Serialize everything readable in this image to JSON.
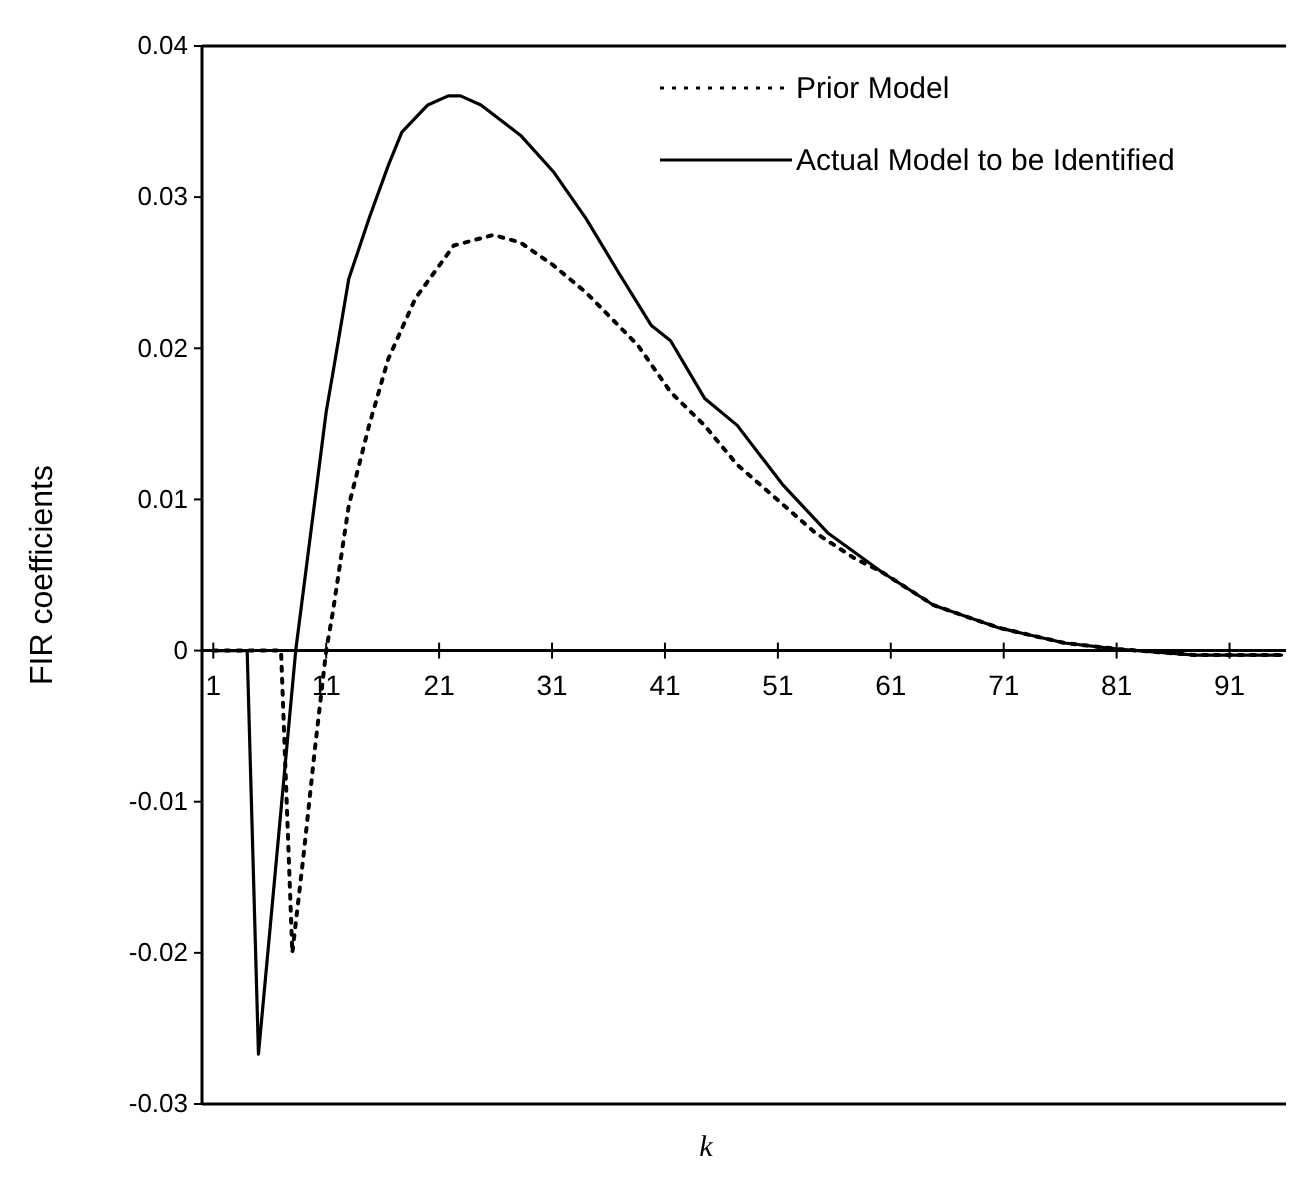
{
  "chart_data": {
    "type": "line",
    "xlabel": "k",
    "ylabel": "FIR coefficients",
    "xlim": [
      0,
      96
    ],
    "ylim": [
      -0.03,
      0.04
    ],
    "xticks": [
      1,
      11,
      21,
      31,
      41,
      51,
      61,
      71,
      81,
      91
    ],
    "yticks": [
      -0.03,
      -0.02,
      -0.01,
      0,
      0.01,
      0.02,
      0.03,
      0.04
    ],
    "grid": false,
    "legend": "top right",
    "marker": "none",
    "series": [
      {
        "name": "Prior Model",
        "color": "#000000",
        "line_style": "dotted",
        "x": [
          1,
          7,
          8,
          9,
          10,
          11,
          11.6,
          13,
          14.8,
          16.5,
          18.9,
          22.3,
          25.8,
          28.2,
          31.1,
          34,
          38.6,
          41.5,
          44.5,
          47.4,
          54.3,
          57.8,
          60.2,
          64.8,
          70.6,
          76.4,
          81.1,
          88,
          95.6
        ],
        "values": [
          0,
          0,
          -0.02,
          -0.0135,
          -0.0065,
          0,
          0.0026,
          0.0096,
          0.0149,
          0.0193,
          0.0233,
          0.0268,
          0.0275,
          0.027,
          0.0255,
          0.0237,
          0.0202,
          0.0171,
          0.0149,
          0.0123,
          0.0078,
          0.0061,
          0.0052,
          0.003,
          0.0015,
          0.0005,
          0.0001,
          -0.0003,
          -0.0003
        ]
      },
      {
        "name": "Actual Model to be Identified",
        "color": "#000000",
        "line_style": "solid",
        "x": [
          1,
          4,
          5,
          8.3,
          11,
          11.6,
          13,
          14.8,
          16.5,
          17.7,
          20,
          21.8,
          22.9,
          24.7,
          28.2,
          31.1,
          34,
          36.9,
          39.8,
          41.5,
          44.5,
          47.4,
          51.4,
          55.4,
          60.2,
          64.8,
          70.6,
          76.4,
          81.1,
          88,
          95.6
        ],
        "values": [
          0,
          0,
          -0.0267,
          0,
          0.0158,
          0.0184,
          0.0246,
          0.0286,
          0.0321,
          0.0343,
          0.0361,
          0.0367,
          0.0367,
          0.0361,
          0.0341,
          0.0317,
          0.0286,
          0.025,
          0.0215,
          0.0205,
          0.0167,
          0.0149,
          0.011,
          0.0078,
          0.0052,
          0.003,
          0.0015,
          0.0005,
          0.0001,
          -0.0003,
          -0.0003
        ]
      }
    ]
  }
}
